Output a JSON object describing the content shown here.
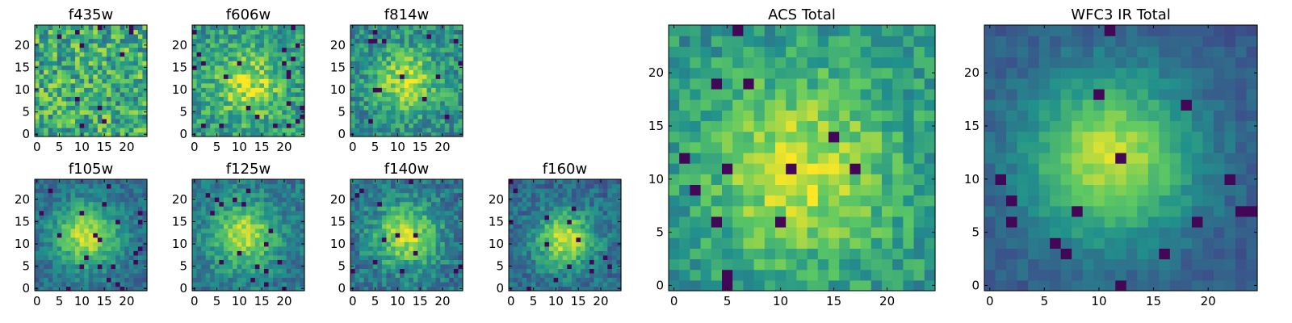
{
  "chart_data": [
    {
      "type": "heatmap",
      "title": "f435w",
      "xticks": [
        "0",
        "5",
        "10",
        "15",
        "20"
      ],
      "yticks": [
        "0",
        "5",
        "10",
        "15",
        "20"
      ],
      "xlim": [
        0,
        24
      ],
      "ylim": [
        0,
        24
      ],
      "grid": false,
      "colormap": "viridis",
      "description_values": {
        "peak": "none (noise)",
        "center": [
          12,
          12
        ]
      }
    },
    {
      "type": "heatmap",
      "title": "f606w",
      "xticks": [
        "0",
        "5",
        "10",
        "15",
        "20"
      ],
      "yticks": [
        "0",
        "5",
        "10",
        "15",
        "20"
      ],
      "xlim": [
        0,
        24
      ],
      "ylim": [
        0,
        24
      ],
      "grid": false,
      "colormap": "viridis",
      "description_values": {
        "peak": "bright",
        "center": [
          12,
          11
        ]
      }
    },
    {
      "type": "heatmap",
      "title": "f814w",
      "xticks": [
        "0",
        "5",
        "10",
        "15",
        "20"
      ],
      "yticks": [
        "0",
        "5",
        "10",
        "15",
        "20"
      ],
      "xlim": [
        0,
        24
      ],
      "ylim": [
        0,
        24
      ],
      "grid": false,
      "colormap": "viridis",
      "description_values": {
        "peak": "bright",
        "center": [
          12,
          12
        ]
      }
    },
    {
      "type": "heatmap",
      "title": "f105w",
      "xticks": [
        "0",
        "5",
        "10",
        "15",
        "20"
      ],
      "yticks": [
        "0",
        "5",
        "10",
        "15",
        "20"
      ],
      "xlim": [
        0,
        24
      ],
      "ylim": [
        0,
        24
      ],
      "grid": false,
      "colormap": "viridis",
      "description_values": {
        "peak": "bright",
        "center": [
          11,
          12
        ]
      }
    },
    {
      "type": "heatmap",
      "title": "f125w",
      "xticks": [
        "0",
        "5",
        "10",
        "15",
        "20"
      ],
      "yticks": [
        "0",
        "5",
        "10",
        "15",
        "20"
      ],
      "xlim": [
        0,
        24
      ],
      "ylim": [
        0,
        24
      ],
      "grid": false,
      "colormap": "viridis",
      "description_values": {
        "peak": "bright",
        "center": [
          11,
          12
        ]
      }
    },
    {
      "type": "heatmap",
      "title": "f140w",
      "xticks": [
        "0",
        "5",
        "10",
        "15",
        "20"
      ],
      "yticks": [
        "0",
        "5",
        "10",
        "15",
        "20"
      ],
      "xlim": [
        0,
        24
      ],
      "ylim": [
        0,
        24
      ],
      "grid": false,
      "colormap": "viridis",
      "description_values": {
        "peak": "bright",
        "center": [
          12,
          12
        ]
      }
    },
    {
      "type": "heatmap",
      "title": "f160w",
      "xticks": [
        "0",
        "5",
        "10",
        "15",
        "20"
      ],
      "yticks": [
        "0",
        "5",
        "10",
        "15",
        "20"
      ],
      "xlim": [
        0,
        24
      ],
      "ylim": [
        0,
        24
      ],
      "grid": false,
      "colormap": "viridis",
      "description_values": {
        "peak": "bright",
        "center": [
          12,
          11
        ]
      }
    },
    {
      "type": "heatmap",
      "title": "ACS Total",
      "xticks": [
        "0",
        "5",
        "10",
        "15",
        "20"
      ],
      "yticks": [
        "0",
        "5",
        "10",
        "15",
        "20"
      ],
      "xlim": [
        0,
        24
      ],
      "ylim": [
        0,
        24
      ],
      "grid": false,
      "colormap": "viridis",
      "description_values": {
        "peak": "bright",
        "center": [
          12,
          11
        ]
      }
    },
    {
      "type": "heatmap",
      "title": "WFC3 IR Total",
      "xticks": [
        "0",
        "5",
        "10",
        "15",
        "20"
      ],
      "yticks": [
        "0",
        "5",
        "10",
        "15",
        "20"
      ],
      "xlim": [
        0,
        24
      ],
      "ylim": [
        0,
        24
      ],
      "grid": false,
      "colormap": "viridis",
      "description_values": {
        "peak": "bright",
        "center": [
          11,
          12
        ]
      }
    }
  ],
  "colors": {
    "colormap_stops": [
      "#440154",
      "#3b528b",
      "#21918c",
      "#5ec962",
      "#fde725"
    ],
    "axis": "#000000",
    "background": "#ffffff"
  }
}
